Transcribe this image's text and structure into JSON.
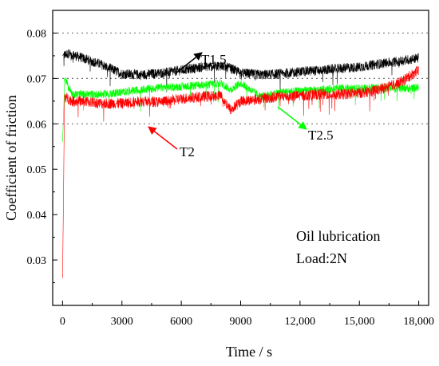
{
  "chart_data": {
    "type": "line",
    "title": "",
    "xlabel": "Time / s",
    "ylabel": "Coefficient of friction",
    "xlim": [
      -500,
      18500
    ],
    "ylim": [
      0.02,
      0.085
    ],
    "xticks": [
      0,
      3000,
      6000,
      9000,
      12000,
      15000,
      18000
    ],
    "xtick_labels": [
      "0",
      "3000",
      "6000",
      "9000",
      "12,000",
      "15,000",
      "18,000"
    ],
    "yticks": [
      0.03,
      0.04,
      0.05,
      0.06,
      0.07,
      0.08
    ],
    "ytick_labels": [
      "0.03",
      "0.04",
      "0.05",
      "0.06",
      "0.07",
      "0.08"
    ],
    "grid": "dotted horizontal at 0.06, 0.07, 0.08",
    "series": [
      {
        "name": "T1.5",
        "color": "#000000",
        "x": [
          0,
          300,
          1000,
          2000,
          3000,
          4000,
          5000,
          6000,
          7000,
          8000,
          8500,
          9000,
          10000,
          11000,
          12000,
          13000,
          14000,
          15000,
          16000,
          17000,
          18000
        ],
        "y": [
          0.075,
          0.0755,
          0.0745,
          0.073,
          0.071,
          0.0708,
          0.0712,
          0.0718,
          0.0725,
          0.0728,
          0.0722,
          0.0712,
          0.0708,
          0.071,
          0.0715,
          0.0718,
          0.0722,
          0.0725,
          0.0732,
          0.0738,
          0.0745
        ]
      },
      {
        "name": "T2",
        "color": "#ff0000",
        "x": [
          0,
          100,
          500,
          1000,
          2000,
          3000,
          4000,
          5000,
          6000,
          7000,
          8000,
          8500,
          9000,
          10000,
          11000,
          12000,
          13000,
          14000,
          15000,
          16000,
          17000,
          18000
        ],
        "y": [
          0.026,
          0.066,
          0.065,
          0.065,
          0.0645,
          0.0645,
          0.065,
          0.0648,
          0.0655,
          0.066,
          0.0662,
          0.063,
          0.065,
          0.0655,
          0.066,
          0.0662,
          0.0665,
          0.0665,
          0.0668,
          0.0675,
          0.069,
          0.0718
        ]
      },
      {
        "name": "T2.5",
        "color": "#00ff00",
        "x": [
          0,
          100,
          500,
          1000,
          2000,
          3000,
          4000,
          5000,
          6000,
          7000,
          8000,
          8500,
          9000,
          10000,
          11000,
          12000,
          13000,
          14000,
          15000,
          16000,
          17000,
          18000
        ],
        "y": [
          0.056,
          0.07,
          0.0665,
          0.0665,
          0.0665,
          0.067,
          0.0675,
          0.068,
          0.0682,
          0.0685,
          0.069,
          0.0675,
          0.069,
          0.066,
          0.067,
          0.0672,
          0.0675,
          0.0678,
          0.0678,
          0.068,
          0.0678,
          0.068
        ]
      }
    ],
    "annotations": [
      {
        "text": "T1.5",
        "color": "#000000"
      },
      {
        "text": "T2",
        "color": "#ff0000"
      },
      {
        "text": "T2.5",
        "color": "#00ff00"
      }
    ],
    "text_box": [
      "Oil lubrication",
      "Load:2N"
    ]
  }
}
